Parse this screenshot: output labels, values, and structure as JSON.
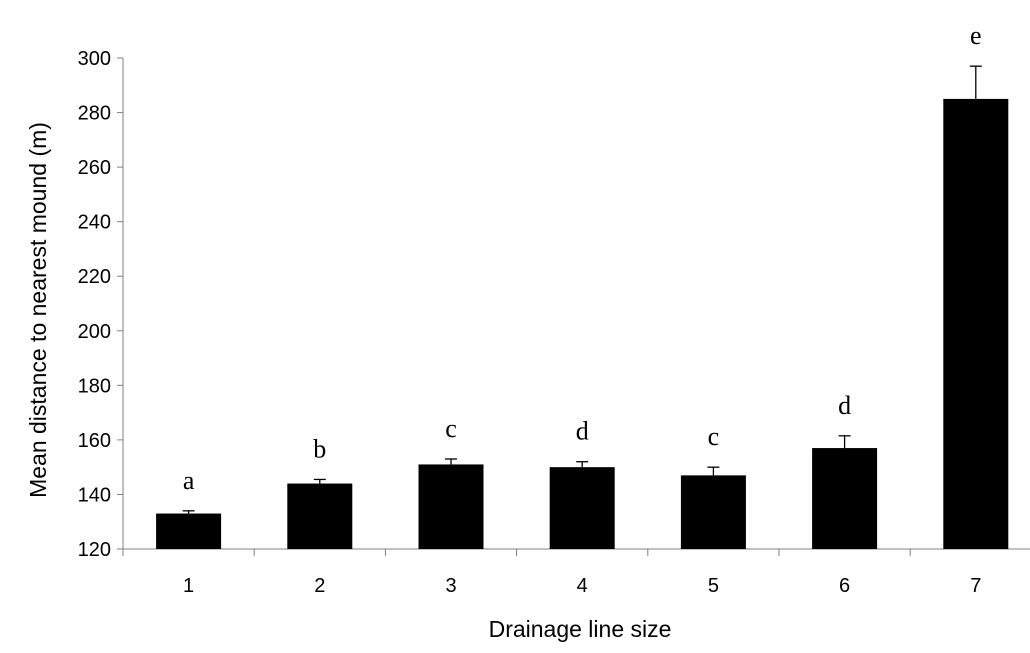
{
  "chart_data": {
    "type": "bar",
    "title": "",
    "xlabel": "Drainage line size",
    "ylabel": "Mean distance to nearest mound (m)",
    "ylim": [
      120,
      300
    ],
    "yticks": [
      120,
      140,
      160,
      180,
      200,
      220,
      240,
      260,
      280,
      300
    ],
    "categories": [
      "1",
      "2",
      "3",
      "4",
      "5",
      "6",
      "7"
    ],
    "values": [
      133,
      144,
      151,
      150,
      147,
      157,
      285
    ],
    "errors": [
      1,
      1.5,
      2,
      2,
      3,
      4.5,
      12
    ],
    "significance_labels": [
      "a",
      "b",
      "c",
      "d",
      "c",
      "d",
      "e"
    ],
    "grid": false,
    "legend": "none",
    "bar_color": "#000000"
  }
}
